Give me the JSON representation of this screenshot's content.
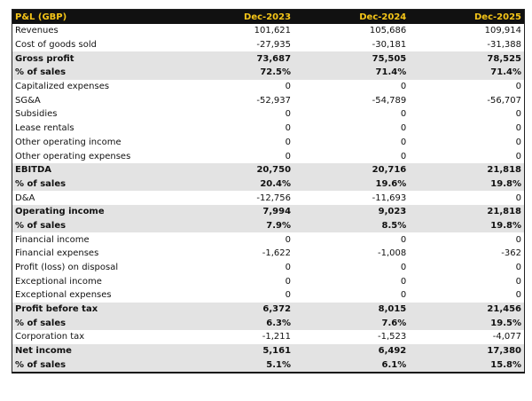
{
  "table": {
    "header": [
      "P&L (GBP)",
      "Dec-2023",
      "Dec-2024",
      "Dec-2025"
    ],
    "rows": [
      {
        "label": "Revenues",
        "values": [
          "101,621",
          "105,686",
          "109,914"
        ]
      },
      {
        "label": "Cost of goods sold",
        "values": [
          "-27,935",
          "-30,181",
          "-31,388"
        ]
      },
      {
        "label": "Gross profit",
        "values": [
          "73,687",
          "75,505",
          "78,525"
        ],
        "bold": true
      },
      {
        "label": "% of sales",
        "values": [
          "72.5%",
          "71.4%",
          "71.4%"
        ],
        "bold": true
      },
      {
        "label": "Capitalized expenses",
        "values": [
          "0",
          "0",
          "0"
        ]
      },
      {
        "label": "SG&A",
        "values": [
          "-52,937",
          "-54,789",
          "-56,707"
        ]
      },
      {
        "label": "Subsidies",
        "values": [
          "0",
          "0",
          "0"
        ]
      },
      {
        "label": "Lease rentals",
        "values": [
          "0",
          "0",
          "0"
        ]
      },
      {
        "label": "Other operating income",
        "values": [
          "0",
          "0",
          "0"
        ]
      },
      {
        "label": "Other operating expenses",
        "values": [
          "0",
          "0",
          "0"
        ]
      },
      {
        "label": "EBITDA",
        "values": [
          "20,750",
          "20,716",
          "21,818"
        ],
        "bold": true
      },
      {
        "label": "% of sales",
        "values": [
          "20.4%",
          "19.6%",
          "19.8%"
        ],
        "bold": true
      },
      {
        "label": "D&A",
        "values": [
          "-12,756",
          "-11,693",
          "0"
        ]
      },
      {
        "label": "Operating income",
        "values": [
          "7,994",
          "9,023",
          "21,818"
        ],
        "bold": true
      },
      {
        "label": "% of sales",
        "values": [
          "7.9%",
          "8.5%",
          "19.8%"
        ],
        "bold": true
      },
      {
        "label": "Financial income",
        "values": [
          "0",
          "0",
          "0"
        ]
      },
      {
        "label": "Financial expenses",
        "values": [
          "-1,622",
          "-1,008",
          "-362"
        ]
      },
      {
        "label": "Profit (loss) on disposal",
        "values": [
          "0",
          "0",
          "0"
        ]
      },
      {
        "label": "Exceptional income",
        "values": [
          "0",
          "0",
          "0"
        ]
      },
      {
        "label": "Exceptional expenses",
        "values": [
          "0",
          "0",
          "0"
        ]
      },
      {
        "label": "Profit before tax",
        "values": [
          "6,372",
          "8,015",
          "21,456"
        ],
        "bold": true
      },
      {
        "label": "% of sales",
        "values": [
          "6.3%",
          "7.6%",
          "19.5%"
        ],
        "bold": true
      },
      {
        "label": "Corporation tax",
        "values": [
          "-1,211",
          "-1,523",
          "-4,077"
        ]
      },
      {
        "label": "Net income",
        "values": [
          "5,161",
          "6,492",
          "17,380"
        ],
        "bold": true
      },
      {
        "label": "% of sales",
        "values": [
          "5.1%",
          "6.1%",
          "15.8%"
        ],
        "bold": true
      }
    ]
  }
}
